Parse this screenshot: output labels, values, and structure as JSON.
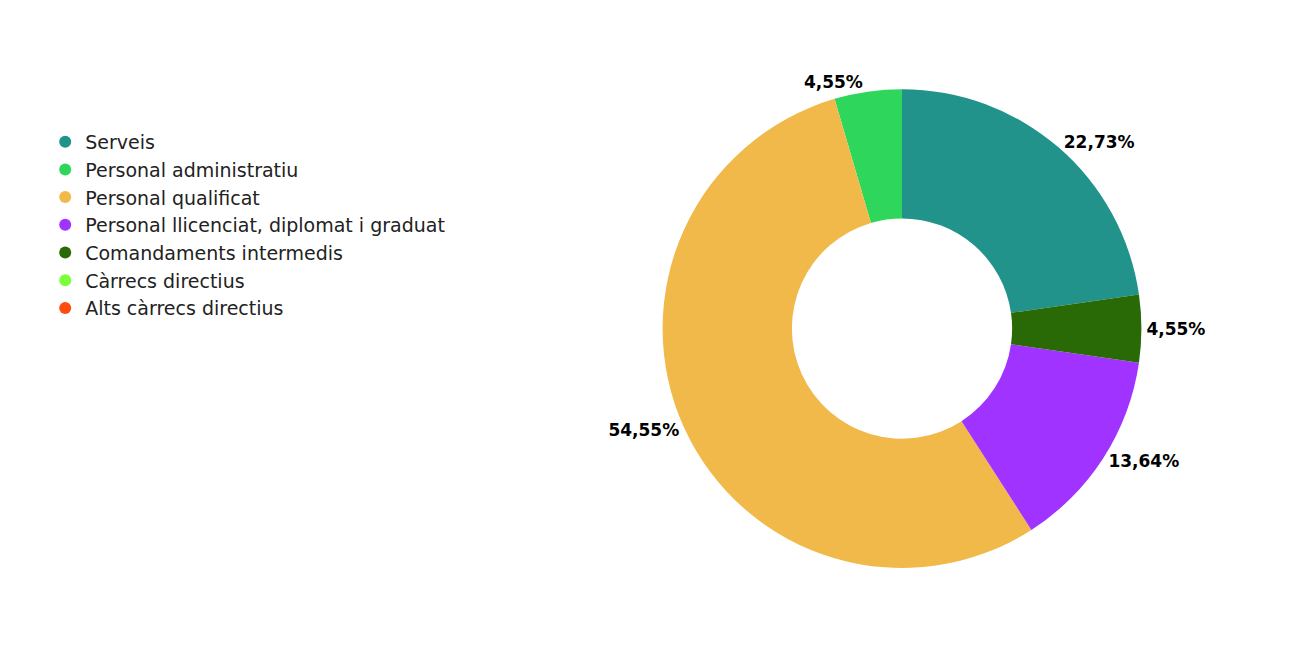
{
  "chart_data": {
    "type": "pie",
    "categories": [
      "Serveis",
      "Personal administratiu",
      "Personal qualificat",
      "Personal llicenciat, diplomat i graduat",
      "Comandaments intermedis",
      "Càrrecs directius",
      "Alts càrrecs directius"
    ],
    "values": [
      22.73,
      4.55,
      54.55,
      13.64,
      4.55,
      0,
      0
    ],
    "value_labels": [
      "22,73%",
      "4,55%",
      "54,55%",
      "13,64%",
      "4,55%",
      null,
      null
    ],
    "colors": [
      "#21938a",
      "#2ed65c",
      "#f0b94a",
      "#a033ff",
      "#2a6a06",
      "#7aff3a",
      "#ff4d0f"
    ],
    "data_labels": true,
    "legend": "left"
  }
}
